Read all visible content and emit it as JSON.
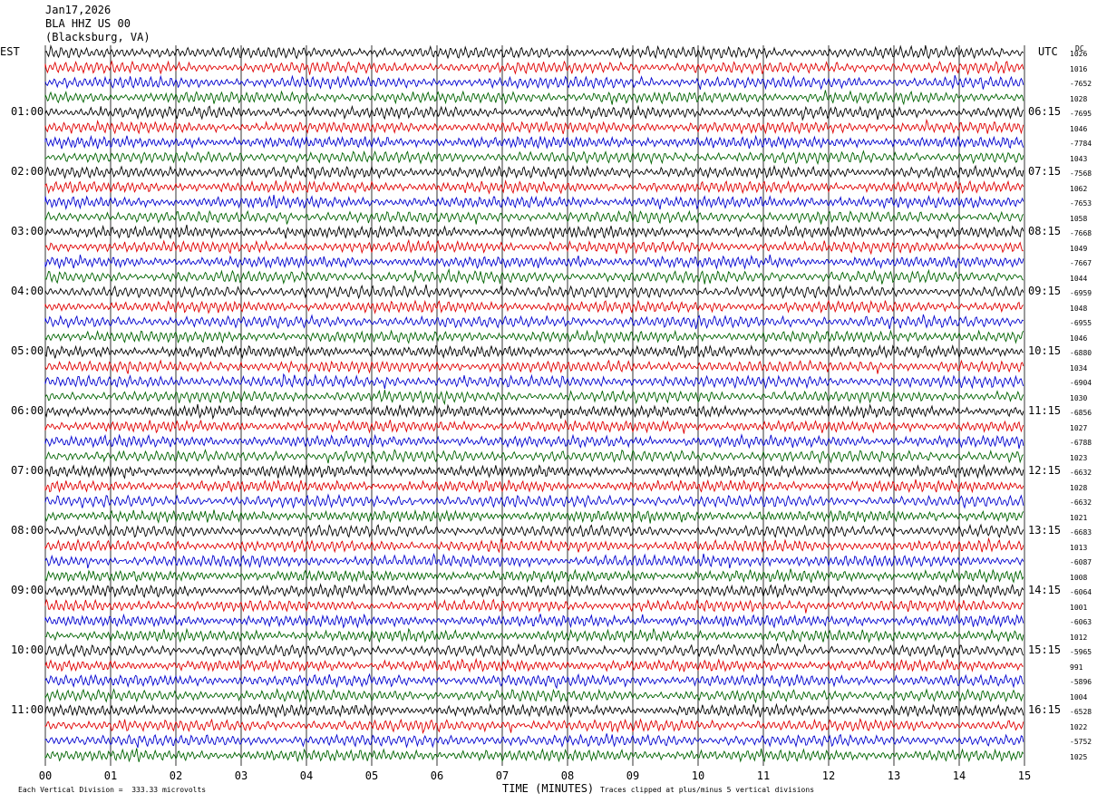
{
  "header": {
    "date": "Jan17,2026",
    "station": "BLA HHZ US 00",
    "location": "(Blacksburg, VA)"
  },
  "left_tz": "EST",
  "right_tz": "UTC",
  "right_corner": "DC",
  "est_hours": [
    "01:00",
    "02:00",
    "03:00",
    "04:00",
    "05:00",
    "06:00",
    "07:00",
    "08:00",
    "09:00",
    "10:00",
    "11:00"
  ],
  "utc_hours": [
    "06:15",
    "07:15",
    "08:15",
    "09:15",
    "10:15",
    "11:15",
    "12:15",
    "13:15",
    "14:15",
    "15:15",
    "16:15"
  ],
  "x_ticks": [
    "00",
    "01",
    "02",
    "03",
    "04",
    "05",
    "06",
    "07",
    "08",
    "09",
    "10",
    "11",
    "12",
    "13",
    "14",
    "15"
  ],
  "x_axis_label": "TIME (MINUTES)",
  "footer_left": "Each Vertical Division =  333.33 microvolts",
  "footer_right": "Traces clipped at plus/minus 5 vertical divisions",
  "dc_values": [
    "1026",
    "1016",
    "-7652",
    "1028",
    "-7695",
    "1046",
    "-7784",
    "1043",
    "-7568",
    "1062",
    "-7653",
    "1058",
    "-7668",
    "1049",
    "-7667",
    "1044",
    "-6959",
    "1048",
    "-6955",
    "1046",
    "-6880",
    "1034",
    "-6904",
    "1030",
    "-6856",
    "1027",
    "-6788",
    "1023",
    "-6632",
    "1028",
    "-6632",
    "1021",
    "-6683",
    "1013",
    "-6087",
    "1008",
    "-6064",
    "1001",
    "-6063",
    "1012",
    "-5965",
    "991",
    "-5896",
    "1004",
    "-6528",
    "1022",
    "-5752",
    "1025"
  ],
  "trace_colors": [
    "#000000",
    "#e00000",
    "#0000d0",
    "#006400"
  ],
  "grid_color": "#000000"
}
